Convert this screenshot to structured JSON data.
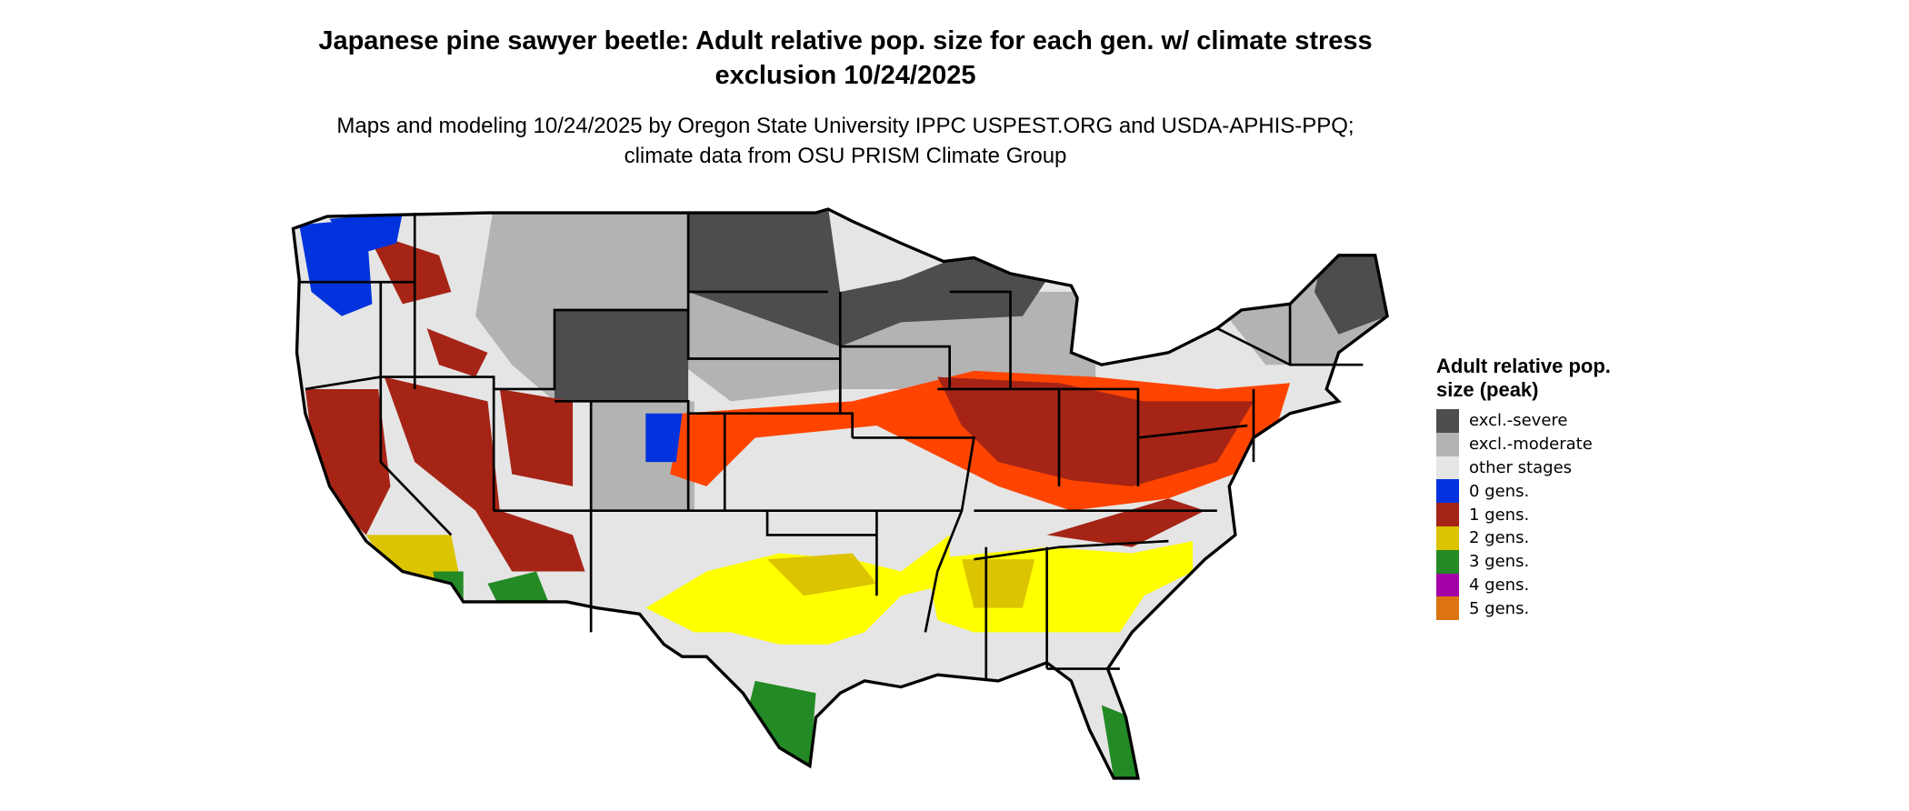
{
  "title": "Japanese pine sawyer beetle: Adult relative pop. size for each gen. w/ climate stress exclusion 10/24/2025",
  "subtitle": "Maps and modeling 10/24/2025 by Oregon State University IPPC USPEST.ORG and USDA-APHIS-PPQ; climate data from OSU PRISM Climate Group",
  "legend": {
    "title": "Adult relative pop. size (peak)",
    "items": [
      {
        "label": "excl.-severe",
        "color": "#4d4d4d"
      },
      {
        "label": "excl.-moderate",
        "color": "#b3b3b3"
      },
      {
        "label": "other stages",
        "color": "#e5e5e5"
      },
      {
        "label": "0 gens.",
        "color": "#0033dd"
      },
      {
        "label": "1 gens.",
        "color": "#a52416"
      },
      {
        "label": "2 gens.",
        "color": "#dcc400"
      },
      {
        "label": "3 gens.",
        "color": "#238a25"
      },
      {
        "label": "4 gens.",
        "color": "#a400a8"
      },
      {
        "label": "5 gens.",
        "color": "#dc7412"
      }
    ]
  },
  "map": {
    "region": "Contiguous United States",
    "colors": {
      "land": "#e5e5e5",
      "severe": "#4d4d4d",
      "moderate": "#b3b3b3",
      "zero": "#0033dd",
      "one": "#a52416",
      "one_light": "#ff4400",
      "two": "#ffff00",
      "two_dark": "#dcc400",
      "three": "#238a25",
      "three_light": "#66cc66",
      "border": "#000000"
    }
  }
}
